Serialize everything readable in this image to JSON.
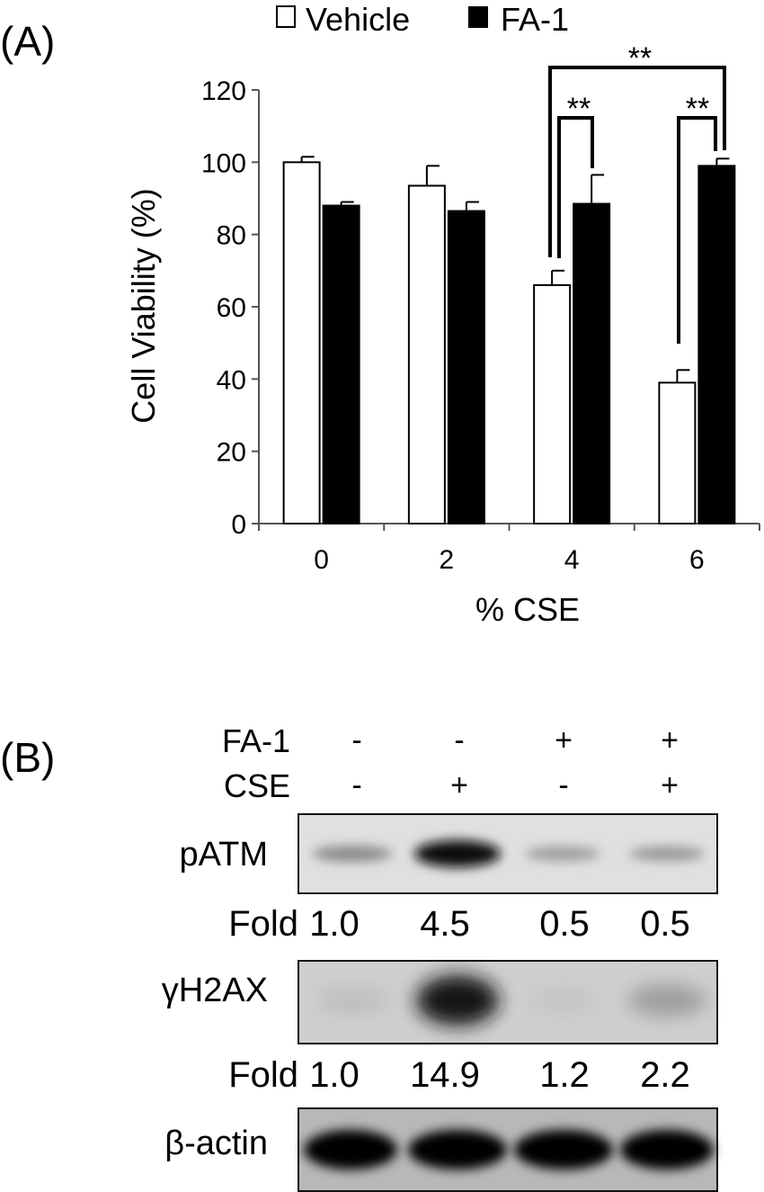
{
  "panel_a": {
    "label": "(A)"
  },
  "panel_b": {
    "label": "(B)"
  },
  "chart_data": {
    "type": "bar",
    "categories": [
      "0",
      "2",
      "4",
      "6"
    ],
    "series": [
      {
        "name": "Vehicle",
        "values": [
          100,
          93.5,
          66,
          39
        ],
        "errors": [
          1.5,
          5.5,
          4,
          3.5
        ],
        "color": "#ffffff"
      },
      {
        "name": "FA-1",
        "values": [
          88,
          86.5,
          88.5,
          99
        ],
        "errors": [
          1,
          2.5,
          8,
          2
        ],
        "color": "#000000"
      }
    ],
    "xlabel": "% CSE",
    "ylabel": "Cell Viability (%)",
    "ylim": [
      0,
      120
    ],
    "yticks": [
      0,
      20,
      40,
      60,
      80,
      100,
      120
    ],
    "legend_position": "top",
    "grid": false,
    "significance": [
      {
        "label": "**",
        "compare": "4% CSE Vehicle vs FA-1"
      },
      {
        "label": "**",
        "compare": "6% CSE Vehicle vs FA-1"
      },
      {
        "label": "**",
        "compare": "4% CSE Vehicle vs 6% CSE FA-1"
      }
    ]
  },
  "blot": {
    "condition_rows": [
      {
        "label": "FA-1",
        "values": [
          "-",
          "-",
          "+",
          "+"
        ]
      },
      {
        "label": "CSE",
        "values": [
          "-",
          "+",
          "-",
          "+"
        ]
      }
    ],
    "bands": [
      {
        "label": "pATM",
        "intensity": [
          0.35,
          1.0,
          0.28,
          0.3
        ]
      },
      {
        "label": "γH2AX",
        "intensity": [
          0.08,
          0.9,
          0.05,
          0.2
        ]
      },
      {
        "label": "β-actin",
        "intensity": [
          1.0,
          1.0,
          1.0,
          1.0
        ]
      }
    ],
    "fold_rows": [
      {
        "label": "Fold",
        "values": [
          "1.0",
          "4.5",
          "0.5",
          "0.5"
        ]
      },
      {
        "label": "Fold",
        "values": [
          "1.0",
          "14.9",
          "1.2",
          "2.2"
        ]
      }
    ]
  }
}
